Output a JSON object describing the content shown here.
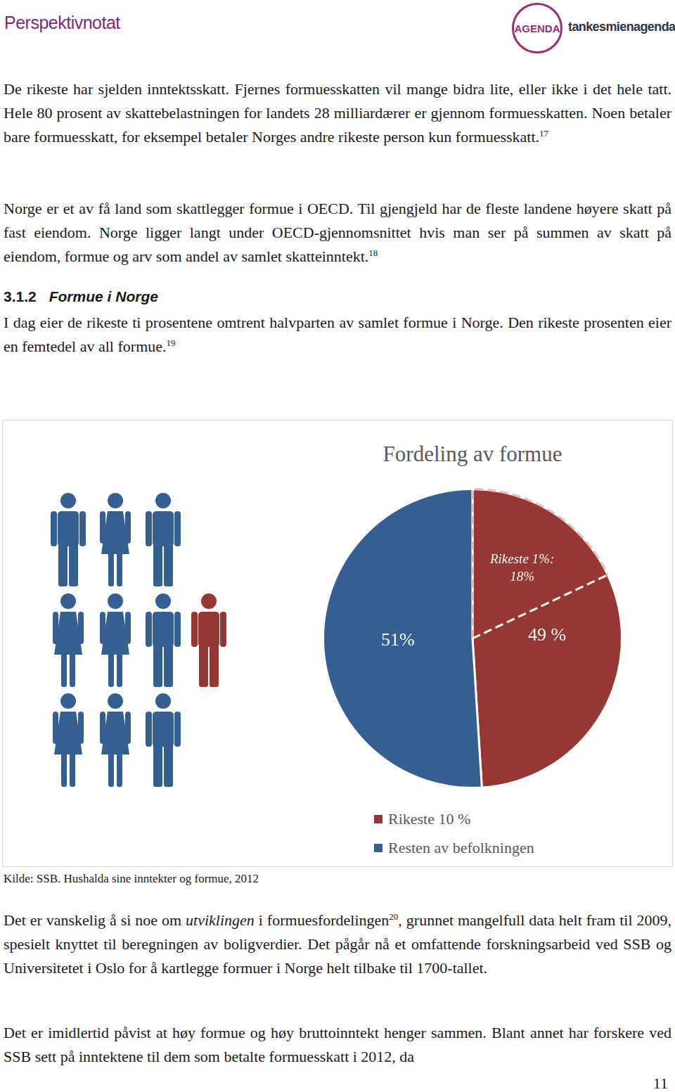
{
  "header": {
    "title": "Perspektivnotat",
    "logo": "AGENDA",
    "site": "tankesmienagenda.no"
  },
  "paragraphs_top": [
    [
      {
        "text": "De rikeste har sjelden inntektsskatt. Fjernes formuesskatten vil mange bidra lite, eller ikke i det hele tatt. Hele 80 prosent av skattebelastningen for landets 28 milliardærer er gjennom formuesskatten. Noen betaler bare formuesskatt, for eksempel betaler Norges andre rikeste person kun formuesskatt."
      },
      {
        "text": "17",
        "sup": true
      }
    ],
    [
      {
        "text": "Norge er et av få land som skattlegger formue i OECD. Til gjengjeld har de fleste landene høyere skatt på fast eiendom. Norge ligger langt under OECD-gjennomsnittet hvis man ser på summen av skatt på eiendom, formue og arv som andel av samlet skatteinntekt."
      },
      {
        "text": "18",
        "sup": true
      }
    ]
  ],
  "section": {
    "number": "3.1.2",
    "title": "Formue i Norge"
  },
  "paragraphs_mid": [
    [
      {
        "text": "I dag eier de rikeste ti prosentene omtrent halvparten av samlet formue i Norge. Den rikeste prosenten eier en femtedel av all formue."
      },
      {
        "text": "19",
        "sup": true
      }
    ]
  ],
  "chart_data": {
    "type": "pie",
    "title": "Fordeling av formue",
    "categories": [
      "Rikeste 10 %",
      "Resten av befolkningen"
    ],
    "values": [
      49,
      51
    ],
    "value_labels": [
      "49 %",
      "51%"
    ],
    "colors": [
      "#953735",
      "#365f91"
    ],
    "data_labels": true,
    "legend": "bottom",
    "annotation": {
      "text": "Rikeste 1%: 18%",
      "value": 18
    }
  },
  "source": "Kilde: SSB. Hushalda sine inntekter og formue, 2012",
  "paragraphs_bottom": [
    [
      {
        "text": "Det er vanskelig å si noe om "
      },
      {
        "text": "utviklingen",
        "italic": true
      },
      {
        "text": " i formuesfordelingen"
      },
      {
        "text": "20",
        "sup": true
      },
      {
        "text": ", grunnet mangelfull data helt fram til 2009, spesielt knyttet til beregningen av boligverdier. Det pågår nå et omfattende forskningsarbeid ved SSB og Universitetet i Oslo for å kartlegge formuer i Norge helt tilbake til 1700-tallet."
      }
    ],
    [
      {
        "text": "Det er imidlertid påvist at høy formue og høy bruttoinntekt henger sammen. Blant annet har forskere ved SSB sett på inntektene til dem som betalte formuesskatt i 2012, da"
      }
    ]
  ],
  "page_number": "11"
}
